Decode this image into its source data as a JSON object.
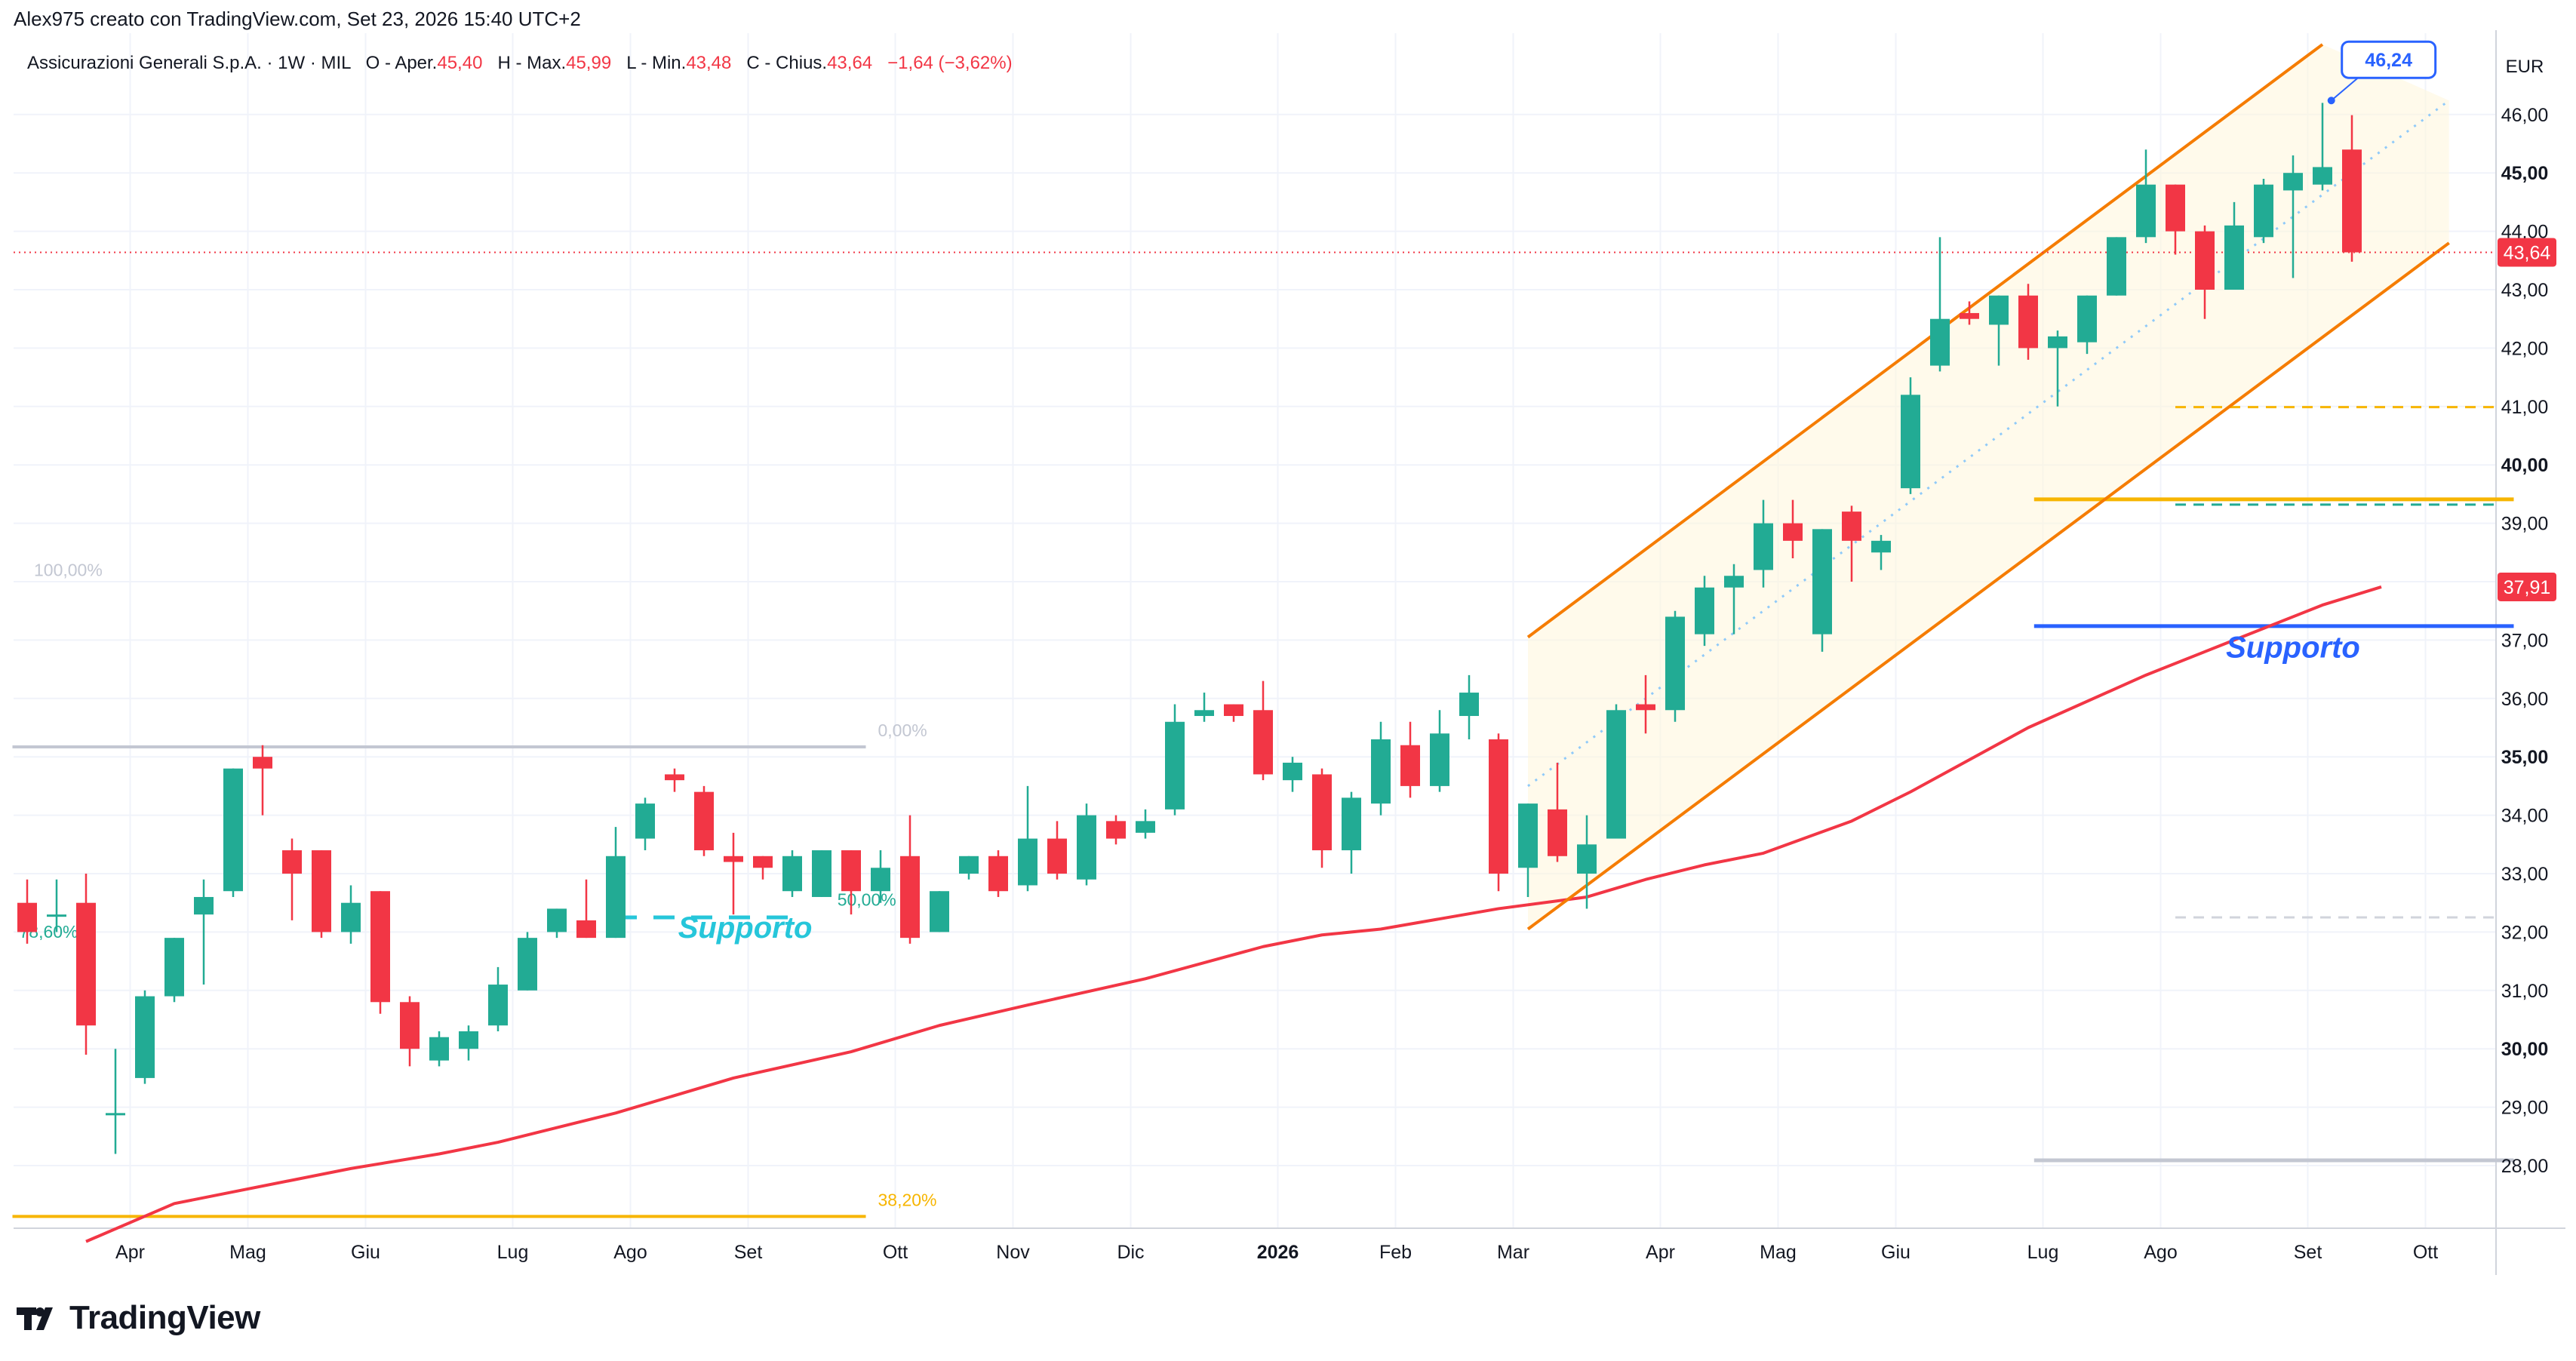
{
  "header": {
    "author_line": "Alex975 creato con TradingView.com, Set 23, 2026 15:40 UTC+2"
  },
  "legend": {
    "symbol": "Assicurazioni Generali S.p.A.",
    "interval": "1W",
    "exchange": "MIL",
    "open_label": "O - Aper.",
    "open_value": "45,40",
    "high_label": "H - Max.",
    "high_value": "45,99",
    "low_label": "L - Min.",
    "low_value": "43,48",
    "close_label": "C - Chius.",
    "close_value": "43,64",
    "change_value": "−1,64 (−3,62%)"
  },
  "brand": {
    "name": "TradingView"
  },
  "chart_data": {
    "type": "candlestick",
    "currency": "EUR",
    "ylim": [
      27.0,
      47.2
    ],
    "y_ticks": [
      "28,00",
      "29,00",
      "30,00",
      "31,00",
      "32,00",
      "33,00",
      "34,00",
      "35,00",
      "36,00",
      "37,00",
      "38,00",
      "39,00",
      "40,00",
      "41,00",
      "42,00",
      "43,00",
      "44,00",
      "45,00",
      "46,00"
    ],
    "y_ticks_bold": [
      "30,00",
      "35,00",
      "40,00",
      "45,00"
    ],
    "x_ticks": [
      {
        "label": "Apr",
        "bar": 3.5,
        "bold": false
      },
      {
        "label": "Mag",
        "bar": 7.5,
        "bold": false
      },
      {
        "label": "Giu",
        "bar": 11.5,
        "bold": false
      },
      {
        "label": "Lug",
        "bar": 16.5,
        "bold": false
      },
      {
        "label": "Ago",
        "bar": 20.5,
        "bold": false
      },
      {
        "label": "Set",
        "bar": 24.5,
        "bold": false
      },
      {
        "label": "Ott",
        "bar": 29.5,
        "bold": false
      },
      {
        "label": "Nov",
        "bar": 33.5,
        "bold": false
      },
      {
        "label": "Dic",
        "bar": 37.5,
        "bold": false
      },
      {
        "label": "2026",
        "bar": 42.5,
        "bold": true
      },
      {
        "label": "Feb",
        "bar": 46.5,
        "bold": false
      },
      {
        "label": "Mar",
        "bar": 50.5,
        "bold": false
      },
      {
        "label": "Apr",
        "bar": 55.5,
        "bold": false
      },
      {
        "label": "Mag",
        "bar": 59.5,
        "bold": false
      },
      {
        "label": "Giu",
        "bar": 63.5,
        "bold": false
      },
      {
        "label": "Lug",
        "bar": 68.5,
        "bold": false
      },
      {
        "label": "Ago",
        "bar": 72.5,
        "bold": false
      },
      {
        "label": "Set",
        "bar": 77.5,
        "bold": false
      },
      {
        "label": "Ott",
        "bar": 81.5,
        "bold": false
      }
    ],
    "candles": [
      [
        32.5,
        32.0,
        32.9,
        31.8
      ],
      [
        32.3,
        32.3,
        32.9,
        32.0
      ],
      [
        32.5,
        30.4,
        33.0,
        29.9
      ],
      [
        28.9,
        28.9,
        30.0,
        28.2
      ],
      [
        29.5,
        30.9,
        31.0,
        29.4
      ],
      [
        30.9,
        31.9,
        31.9,
        30.8
      ],
      [
        32.3,
        32.6,
        32.9,
        31.1
      ],
      [
        32.7,
        34.8,
        34.8,
        32.6
      ],
      [
        35.0,
        34.8,
        35.2,
        34.0
      ],
      [
        33.4,
        33.0,
        33.6,
        32.2
      ],
      [
        33.4,
        32.0,
        33.4,
        31.9
      ],
      [
        32.0,
        32.5,
        32.8,
        31.8
      ],
      [
        32.7,
        30.8,
        32.7,
        30.6
      ],
      [
        30.8,
        30.0,
        30.9,
        29.7
      ],
      [
        29.8,
        30.2,
        30.3,
        29.7
      ],
      [
        30.0,
        30.3,
        30.4,
        29.8
      ],
      [
        30.4,
        31.1,
        31.4,
        30.3
      ],
      [
        31.0,
        31.9,
        32.0,
        31.0
      ],
      [
        32.0,
        32.4,
        32.4,
        31.9
      ],
      [
        32.2,
        31.9,
        32.9,
        31.9
      ],
      [
        31.9,
        33.3,
        33.8,
        31.9
      ],
      [
        33.6,
        34.2,
        34.3,
        33.4
      ],
      [
        34.7,
        34.6,
        34.8,
        34.4
      ],
      [
        34.4,
        33.4,
        34.5,
        33.3
      ],
      [
        33.3,
        33.2,
        33.7,
        32.3
      ],
      [
        33.3,
        33.1,
        33.3,
        32.9
      ],
      [
        32.7,
        33.3,
        33.4,
        32.6
      ],
      [
        32.6,
        33.4,
        33.4,
        32.6
      ],
      [
        33.4,
        32.7,
        33.4,
        32.3
      ],
      [
        32.7,
        33.1,
        33.4,
        32.5
      ],
      [
        33.3,
        31.9,
        34.0,
        31.8
      ],
      [
        32.0,
        32.7,
        32.7,
        32.0
      ],
      [
        33.0,
        33.3,
        33.3,
        32.9
      ],
      [
        33.3,
        32.7,
        33.4,
        32.6
      ],
      [
        32.8,
        33.6,
        34.5,
        32.7
      ],
      [
        33.6,
        33.0,
        33.9,
        32.9
      ],
      [
        32.9,
        34.0,
        34.2,
        32.8
      ],
      [
        33.9,
        33.6,
        34.0,
        33.5
      ],
      [
        33.7,
        33.9,
        34.1,
        33.6
      ],
      [
        34.1,
        35.6,
        35.9,
        34.0
      ],
      [
        35.7,
        35.8,
        36.1,
        35.6
      ],
      [
        35.9,
        35.7,
        35.9,
        35.6
      ],
      [
        35.8,
        34.7,
        36.3,
        34.6
      ],
      [
        34.6,
        34.9,
        35.0,
        34.4
      ],
      [
        34.7,
        33.4,
        34.8,
        33.1
      ],
      [
        33.4,
        34.3,
        34.4,
        33.0
      ],
      [
        34.2,
        35.3,
        35.6,
        34.0
      ],
      [
        35.2,
        34.5,
        35.6,
        34.3
      ],
      [
        34.5,
        35.4,
        35.8,
        34.4
      ],
      [
        35.7,
        36.1,
        36.4,
        35.3
      ],
      [
        35.3,
        33.0,
        35.4,
        32.7
      ],
      [
        33.1,
        34.2,
        34.2,
        32.6
      ],
      [
        34.1,
        33.3,
        34.9,
        33.2
      ],
      [
        33.0,
        33.5,
        34.0,
        32.4
      ],
      [
        33.6,
        35.8,
        35.9,
        33.6
      ],
      [
        35.9,
        35.8,
        36.4,
        35.4
      ],
      [
        35.8,
        37.4,
        37.5,
        35.6
      ],
      [
        37.1,
        37.9,
        38.1,
        36.9
      ],
      [
        37.9,
        38.1,
        38.3,
        37.1
      ],
      [
        38.2,
        39.0,
        39.4,
        37.9
      ],
      [
        39.0,
        38.7,
        39.4,
        38.4
      ],
      [
        37.1,
        38.9,
        38.9,
        36.8
      ],
      [
        39.2,
        38.7,
        39.3,
        38.0
      ],
      [
        38.5,
        38.7,
        38.8,
        38.2
      ],
      [
        39.6,
        41.2,
        41.5,
        39.5
      ],
      [
        41.7,
        42.5,
        43.9,
        41.6
      ],
      [
        42.6,
        42.5,
        42.8,
        42.4
      ],
      [
        42.4,
        42.9,
        42.9,
        41.7
      ],
      [
        42.9,
        42.0,
        43.1,
        41.8
      ],
      [
        42.0,
        42.2,
        42.3,
        41.0
      ],
      [
        42.1,
        42.9,
        42.9,
        41.9
      ],
      [
        42.9,
        43.9,
        43.9,
        42.9
      ],
      [
        43.9,
        44.8,
        45.4,
        43.8
      ],
      [
        44.8,
        44.0,
        44.8,
        43.6
      ],
      [
        44.0,
        43.0,
        44.1,
        42.5
      ],
      [
        43.0,
        44.1,
        44.5,
        43.0
      ],
      [
        43.9,
        44.8,
        44.9,
        43.8
      ],
      [
        44.7,
        45.0,
        45.3,
        43.2
      ],
      [
        44.8,
        45.1,
        46.2,
        44.7
      ],
      [
        45.4,
        43.64,
        45.99,
        43.48
      ]
    ],
    "moving_average": [
      [
        2,
        26.7
      ],
      [
        5,
        27.35
      ],
      [
        7,
        27.55
      ],
      [
        11,
        27.95
      ],
      [
        14,
        28.2
      ],
      [
        16,
        28.4
      ],
      [
        20,
        28.9
      ],
      [
        24,
        29.5
      ],
      [
        28,
        29.95
      ],
      [
        31,
        30.4
      ],
      [
        34,
        30.75
      ],
      [
        38,
        31.2
      ],
      [
        42,
        31.75
      ],
      [
        44,
        31.95
      ],
      [
        46,
        32.05
      ],
      [
        50,
        32.4
      ],
      [
        53,
        32.6
      ],
      [
        55,
        32.9
      ],
      [
        57,
        33.15
      ],
      [
        59,
        33.35
      ],
      [
        62,
        33.9
      ],
      [
        64,
        34.4
      ],
      [
        68,
        35.5
      ],
      [
        72,
        36.4
      ],
      [
        75,
        37.0
      ],
      [
        78,
        37.6
      ],
      [
        80,
        37.91
      ]
    ],
    "channel": {
      "upper": [
        [
          51,
          37.05
        ],
        [
          78,
          47.2
        ]
      ],
      "lower": [
        [
          51,
          32.05
        ],
        [
          82.3,
          43.8
        ]
      ],
      "mid": [
        [
          51,
          34.5
        ],
        [
          82.3,
          46.24
        ]
      ],
      "fill_polygon": [
        [
          51,
          37.05
        ],
        [
          78,
          47.2
        ],
        [
          82.3,
          46.24
        ],
        [
          82.3,
          43.8
        ],
        [
          51,
          32.05
        ]
      ]
    },
    "levels": [
      {
        "name": "supporto-level-1",
        "value": 37.24,
        "from_bar": 68.2,
        "to_bar": 84.5,
        "color": "#2962ff",
        "dash": false,
        "thick": true
      },
      {
        "name": "yellow-level",
        "value": 39.41,
        "from_bar": 68.2,
        "to_bar": 84.5,
        "color": "#f7b500",
        "dash": false,
        "thick": true
      },
      {
        "name": "dashed-teal-level",
        "value": 39.32,
        "from_bar": 73,
        "to_bar": 84,
        "color": "#22ab94",
        "dash": true,
        "thick": false
      },
      {
        "name": "dashed-orange-level",
        "value": 40.99,
        "from_bar": 73,
        "to_bar": 84,
        "color": "#f7b500",
        "dash": true,
        "thick": false
      },
      {
        "name": "dashed-grey-level",
        "value": 32.25,
        "from_bar": 73,
        "to_bar": 84,
        "color": "#d1d4dc",
        "dash": true,
        "thick": false
      },
      {
        "name": "grey-level",
        "value": 28.09,
        "from_bar": 68.2,
        "to_bar": 84.5,
        "color": "#c3c7d2",
        "dash": false,
        "thick": true
      },
      {
        "name": "supporto-level-2",
        "value": 32.25,
        "from_bar": 20,
        "to_bar": 26,
        "color": "#26c6da",
        "dash": true,
        "thick": true
      }
    ],
    "fib": [
      {
        "label": "0,00%",
        "value": 35.17,
        "color": "#c3c7d2",
        "from_bar": -0.5,
        "to_bar": 28.5
      },
      {
        "label": "38,20%",
        "value": 27.13,
        "color": "#f7b500",
        "from_bar": -0.5,
        "to_bar": 28.5
      }
    ],
    "fib_partial_labels": [
      {
        "label": "100,00%",
        "value": 38.1,
        "color": "#c3c7d2",
        "bar": 1.0
      },
      {
        "label": "78,60%",
        "value": 31.9,
        "color": "#22ab94",
        "bar": 0.5
      },
      {
        "label": "50,00%",
        "value": 32.45,
        "color": "#22ab94",
        "bar": 28.3
      }
    ],
    "annotations": [
      {
        "text": "Supporto",
        "value": 31.9,
        "bar": 24.4,
        "color": "#26c6da"
      },
      {
        "text": "Supporto",
        "value": 36.7,
        "bar": 77.0,
        "color": "#2962ff"
      }
    ],
    "price_labels": [
      {
        "text": "43,64",
        "value": 43.64,
        "bg": "#f23645"
      },
      {
        "text": "37,91",
        "value": 37.91,
        "bg": "#f23645"
      }
    ],
    "last_price_line": 43.64,
    "callout": {
      "text": "46,24",
      "value": 46.24,
      "bar": 78.3
    }
  }
}
